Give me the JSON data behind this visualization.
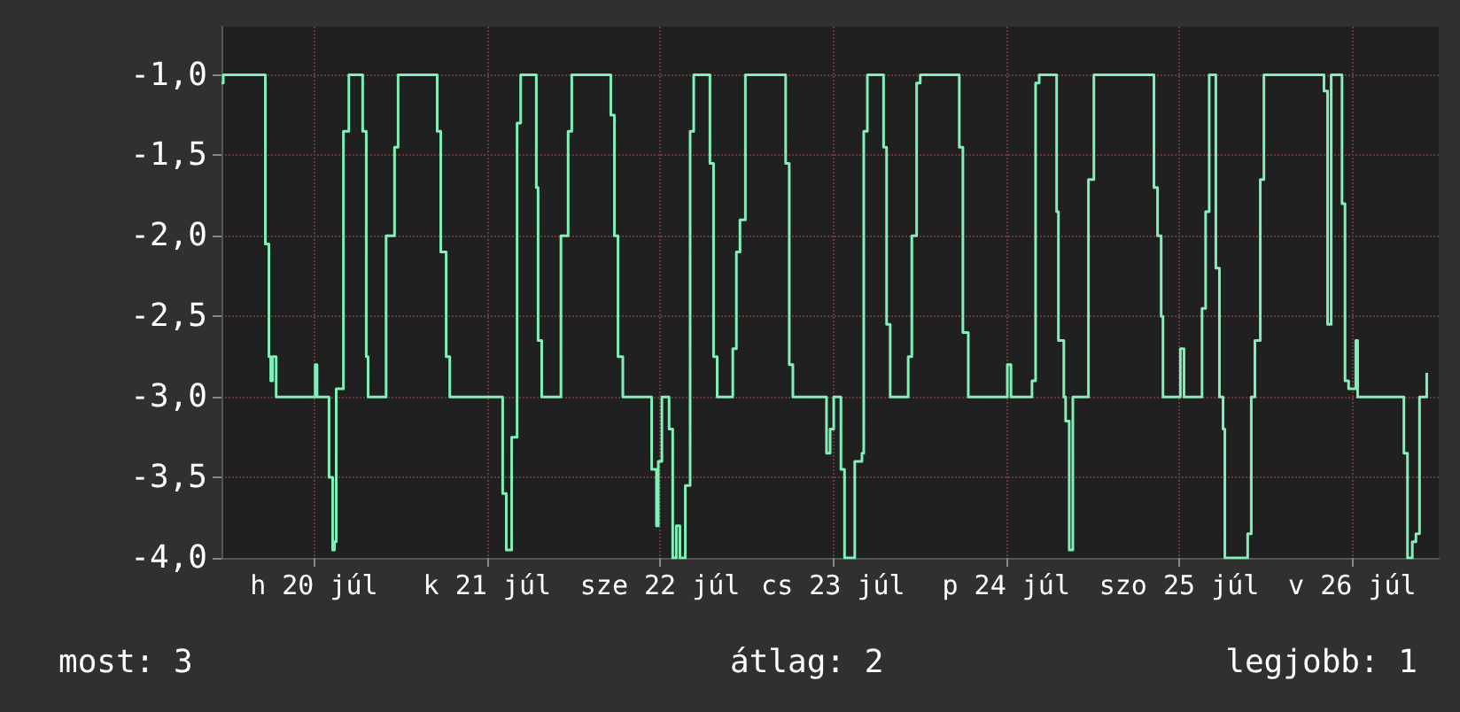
{
  "chart_data": {
    "type": "step",
    "xlim": [
      "--07-19T23:10",
      "--07-27T00:00"
    ],
    "xticks": [
      {
        "value": "--07-20T12:00",
        "label": "h 20 júl"
      },
      {
        "value": "--07-21T12:00",
        "label": "k 21 júl"
      },
      {
        "value": "--07-22T12:00",
        "label": "sze 22 júl"
      },
      {
        "value": "--07-23T12:00",
        "label": "cs 23 júl"
      },
      {
        "value": "--07-24T12:00",
        "label": "p 24 júl"
      },
      {
        "value": "--07-25T12:00",
        "label": "szo 25 júl"
      },
      {
        "value": "--07-26T12:00",
        "label": "v 26 júl"
      }
    ],
    "ylim": [
      -4,
      -0.7
    ],
    "yticks": [
      {
        "value": -1,
        "label": "-1,0"
      },
      {
        "value": -1.5,
        "label": "-1,5"
      },
      {
        "value": -2,
        "label": "-2,0"
      },
      {
        "value": -2.5,
        "label": "-2,5"
      },
      {
        "value": -3,
        "label": "-3,0"
      },
      {
        "value": -3.5,
        "label": "-3,5"
      },
      {
        "value": -4,
        "label": "-4,0"
      }
    ],
    "grid": true,
    "marker": "none",
    "line_style": "solid",
    "annotations": [
      "most: 3",
      "átlag: 2",
      "legjobb: 1"
    ],
    "series": [
      {
        "color": "#80f0b8",
        "x": [
          "--07-19T23:10",
          "--07-19T23:25",
          "--07-20T05:00",
          "--07-20T05:15",
          "--07-20T05:45",
          "--07-20T06:00",
          "--07-20T06:15",
          "--07-20T06:45",
          "--07-20T11:55",
          "--07-20T12:10",
          "--07-20T12:25",
          "--07-20T13:50",
          "--07-20T14:05",
          "--07-20T14:35",
          "--07-20T14:50",
          "--07-20T15:05",
          "--07-20T16:05",
          "--07-20T16:50",
          "--07-20T18:15",
          "--07-20T18:45",
          "--07-20T19:15",
          "--07-20T19:30",
          "--07-20T21:30",
          "--07-20T22:00",
          "--07-20T23:10",
          "--07-20T23:40",
          "--07-21T04:35",
          "--07-21T05:05",
          "--07-21T05:35",
          "--07-21T06:20",
          "--07-21T06:50",
          "--07-21T13:55",
          "--07-21T14:10",
          "--07-21T14:40",
          "--07-21T15:25",
          "--07-21T16:10",
          "--07-21T16:40",
          "--07-21T18:20",
          "--07-21T18:50",
          "--07-21T19:05",
          "--07-21T19:35",
          "--07-21T22:00",
          "--07-21T22:15",
          "--07-21T23:15",
          "--07-21T23:45",
          "--07-22T04:40",
          "--07-22T05:10",
          "--07-22T05:40",
          "--07-22T06:10",
          "--07-22T06:50",
          "--07-22T10:35",
          "--07-22T10:50",
          "--07-22T11:30",
          "--07-22T11:45",
          "--07-22T12:15",
          "--07-22T13:00",
          "--07-22T13:15",
          "--07-22T13:45",
          "--07-22T14:15",
          "--07-22T14:45",
          "--07-22T15:30",
          "--07-22T16:10",
          "--07-22T16:40",
          "--07-22T18:25",
          "--07-22T18:55",
          "--07-22T19:25",
          "--07-22T19:55",
          "--07-22T21:50",
          "--07-22T22:05",
          "--07-22T22:35",
          "--07-22T23:05",
          "--07-22T23:50",
          "--07-23T05:00",
          "--07-23T05:25",
          "--07-23T05:55",
          "--07-23T06:25",
          "--07-23T10:35",
          "--07-23T11:05",
          "--07-23T11:35",
          "--07-23T12:05",
          "--07-23T12:35",
          "--07-23T13:05",
          "--07-23T13:35",
          "--07-23T14:45",
          "--07-23T15:00",
          "--07-23T16:00",
          "--07-23T16:15",
          "--07-23T16:45",
          "--07-23T18:30",
          "--07-23T19:00",
          "--07-23T19:25",
          "--07-23T19:55",
          "--07-23T21:55",
          "--07-23T22:25",
          "--07-23T22:55",
          "--07-23T23:35",
          "--07-24T00:05",
          "--07-24T05:00",
          "--07-24T05:30",
          "--07-24T06:00",
          "--07-24T06:45",
          "--07-24T11:55",
          "--07-24T12:10",
          "--07-24T12:40",
          "--07-24T15:20",
          "--07-24T15:35",
          "--07-24T16:05",
          "--07-24T16:35",
          "--07-24T18:30",
          "--07-24T19:00",
          "--07-24T19:15",
          "--07-24T20:00",
          "--07-24T20:15",
          "--07-24T20:45",
          "--07-24T21:15",
          "--07-24T22:55",
          "--07-24T23:25",
          "--07-25T00:10",
          "--07-25T08:00",
          "--07-25T08:30",
          "--07-25T09:00",
          "--07-25T09:30",
          "--07-25T09:45",
          "--07-25T11:55",
          "--07-25T12:10",
          "--07-25T12:40",
          "--07-25T14:55",
          "--07-25T15:10",
          "--07-25T15:40",
          "--07-25T16:10",
          "--07-25T16:35",
          "--07-25T17:05",
          "--07-25T17:35",
          "--07-25T18:05",
          "--07-25T18:20",
          "--07-25T21:00",
          "--07-25T21:30",
          "--07-25T22:00",
          "--07-25T22:30",
          "--07-25T23:15",
          "--07-25T23:45",
          "--07-26T07:35",
          "--07-26T08:05",
          "--07-26T08:35",
          "--07-26T09:05",
          "--07-26T10:20",
          "--07-26T10:35",
          "--07-26T11:00",
          "--07-26T11:30",
          "--07-26T12:00",
          "--07-26T12:30",
          "--07-26T12:45",
          "--07-26T18:55",
          "--07-26T19:10",
          "--07-26T19:40",
          "--07-26T20:20",
          "--07-26T20:50",
          "--07-26T21:20",
          "--07-26T21:50",
          "--07-26T22:20"
        ],
        "values": [
          -1.05,
          -1,
          -1,
          -2.05,
          -2.75,
          -2.9,
          -2.75,
          -3,
          -3,
          -2.8,
          -3,
          -3,
          -3.5,
          -3.95,
          -3.9,
          -2.95,
          -1.35,
          -1,
          -1,
          -1.35,
          -2.75,
          -3,
          -3,
          -2,
          -1.45,
          -1,
          -1,
          -1.35,
          -2.1,
          -2.75,
          -3,
          -3,
          -3.6,
          -3.95,
          -3.25,
          -1.3,
          -1,
          -1,
          -1.7,
          -2.65,
          -3,
          -3,
          -2,
          -1.35,
          -1,
          -1,
          -1.25,
          -2,
          -2.75,
          -3,
          -3,
          -3.45,
          -3.8,
          -3.4,
          -3,
          -3,
          -3.2,
          -4,
          -3.8,
          -4,
          -3.55,
          -1.35,
          -1,
          -1,
          -1.55,
          -2.75,
          -3,
          -3,
          -2.7,
          -2.1,
          -1.9,
          -1,
          -1,
          -1.55,
          -2.8,
          -3,
          -3,
          -3.35,
          -3.2,
          -3,
          -3,
          -3.45,
          -4,
          -4,
          -3.4,
          -3.35,
          -1.35,
          -1,
          -1,
          -1.45,
          -2.55,
          -3,
          -3,
          -2.75,
          -2,
          -1.05,
          -1,
          -1,
          -1.45,
          -2.6,
          -3,
          -3,
          -2.8,
          -3,
          -3,
          -2.9,
          -1.05,
          -1,
          -1,
          -1.85,
          -2.65,
          -3,
          -3.15,
          -3.95,
          -3,
          -3,
          -1.65,
          -1,
          -1,
          -1.7,
          -2,
          -2.5,
          -3,
          -3,
          -2.7,
          -3,
          -3,
          -2.45,
          -1.85,
          -1,
          -1,
          -2.2,
          -3,
          -3.2,
          -4,
          -4,
          -3.85,
          -3,
          -2.65,
          -1.65,
          -1,
          -1,
          -1.1,
          -2.55,
          -1,
          -1,
          -1.8,
          -2.9,
          -2.95,
          -2.95,
          -2.65,
          -3,
          -3,
          -3.35,
          -4,
          -3.9,
          -3.85,
          -3,
          -3,
          -2.85
        ]
      }
    ]
  }
}
